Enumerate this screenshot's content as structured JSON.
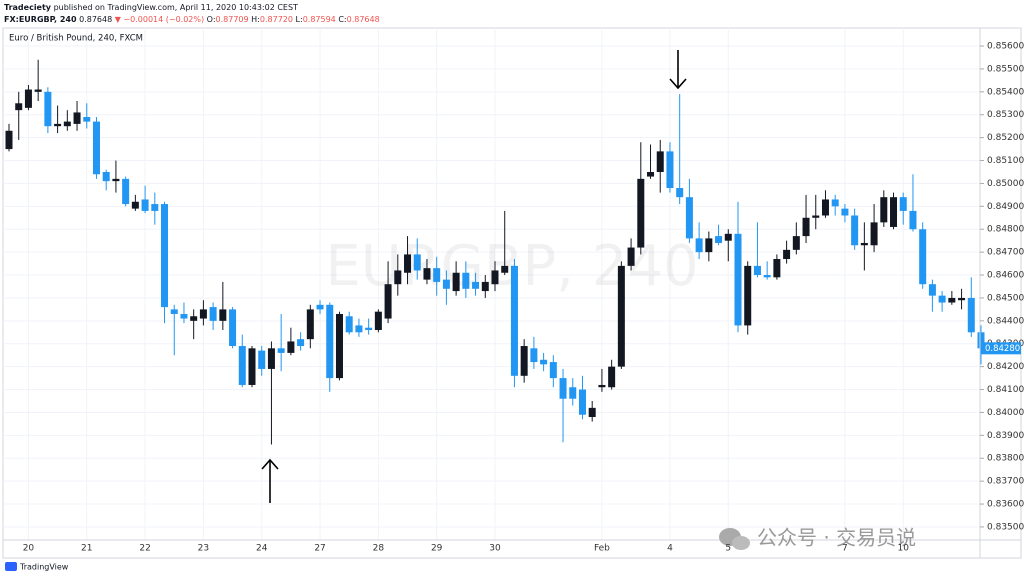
{
  "header": {
    "publisher": "Tradeciety",
    "published_line": "published on TradingView.com, April 11, 2020 10:43:02 CEST",
    "symbol": "FX:EURGBP, 240",
    "price": "0.87648",
    "change": "▼ −0.00014 (−0.02%)",
    "ohlc": [
      [
        "O:",
        "0.87709"
      ],
      [
        "H:",
        "0.87720"
      ],
      [
        "L:",
        "0.87594"
      ],
      [
        "C:",
        "0.87648"
      ]
    ]
  },
  "footer": {
    "brand": "TradingView"
  },
  "watermarks": {
    "center": "EURGBP, 240",
    "corner": "公众号 · 交易员说"
  },
  "chart_data": {
    "type": "candlestick",
    "title": "Euro / British Pound, 240, FXCM",
    "up_color": "#131722",
    "down_color": "#2196f3",
    "grid": true,
    "ylim": [
      0.83443,
      0.8567
    ],
    "yticks": [
      {
        "value": 0.835,
        "label": "0.83500"
      },
      {
        "value": 0.836,
        "label": "0.83600"
      },
      {
        "value": 0.837,
        "label": "0.83700"
      },
      {
        "value": 0.838,
        "label": "0.83800"
      },
      {
        "value": 0.839,
        "label": "0.83900"
      },
      {
        "value": 0.84,
        "label": "0.84000"
      },
      {
        "value": 0.841,
        "label": "0.84100"
      },
      {
        "value": 0.842,
        "label": "0.84200"
      },
      {
        "value": 0.843,
        "label": "0.84300"
      },
      {
        "value": 0.844,
        "label": "0.84400"
      },
      {
        "value": 0.845,
        "label": "0.84500"
      },
      {
        "value": 0.846,
        "label": "0.84600"
      },
      {
        "value": 0.847,
        "label": "0.84700"
      },
      {
        "value": 0.848,
        "label": "0.84800"
      },
      {
        "value": 0.849,
        "label": "0.84900"
      },
      {
        "value": 0.85,
        "label": "0.85000"
      },
      {
        "value": 0.851,
        "label": "0.85100"
      },
      {
        "value": 0.852,
        "label": "0.85200"
      },
      {
        "value": 0.853,
        "label": "0.85300"
      },
      {
        "value": 0.854,
        "label": "0.85400"
      },
      {
        "value": 0.855,
        "label": "0.85500"
      },
      {
        "value": 0.856,
        "label": "0.85600"
      }
    ],
    "last_price": 0.8428,
    "last_price_label": "0.84280",
    "categories": [
      null,
      null,
      "20",
      null,
      null,
      null,
      null,
      null,
      "21",
      null,
      null,
      null,
      null,
      null,
      "22",
      null,
      null,
      null,
      null,
      null,
      "23",
      null,
      null,
      null,
      null,
      null,
      "24",
      null,
      null,
      null,
      null,
      null,
      "27",
      null,
      null,
      null,
      null,
      null,
      "28",
      null,
      null,
      null,
      null,
      null,
      "29",
      null,
      null,
      null,
      null,
      null,
      "30",
      null,
      null,
      null,
      null,
      null,
      null,
      null,
      null,
      null,
      null,
      "Feb",
      null,
      null,
      null,
      null,
      null,
      null,
      "4",
      null,
      null,
      null,
      null,
      null,
      "5",
      null,
      null,
      null,
      null,
      null,
      null,
      null,
      null,
      null,
      null,
      null,
      "7",
      null,
      null,
      null,
      null,
      null,
      "10",
      null,
      null,
      null,
      null,
      null,
      null,
      null,
      null
    ],
    "open": [
      0.8515,
      0.8532,
      0.8533,
      0.854,
      0.854,
      0.8525,
      0.8525,
      0.8526,
      0.8529,
      0.8527,
      0.8505,
      0.8501,
      0.8502,
      0.8489,
      0.8493,
      0.8491,
      0.8491,
      0.8445,
      0.8443,
      0.844,
      0.8441,
      0.8446,
      0.844,
      0.8445,
      0.8429,
      0.8412,
      0.8427,
      0.8419,
      0.8428,
      0.8426,
      0.8432,
      0.8432,
      0.8447,
      0.8447,
      0.8415,
      0.8442,
      0.8438,
      0.8437,
      0.8436,
      0.8441,
      0.8456,
      0.8461,
      0.8469,
      0.8458,
      0.8463,
      0.8458,
      0.8453,
      0.8461,
      0.8457,
      0.8453,
      0.8456,
      0.8461,
      0.8464,
      0.8416,
      0.8428,
      0.8423,
      0.8422,
      0.8415,
      0.8411,
      0.841,
      0.8398,
      0.8411,
      0.8411,
      0.842,
      0.8464,
      0.8472,
      0.8503,
      0.8505,
      0.8514,
      0.8498,
      0.8494,
      0.8476,
      0.847,
      0.8477,
      0.8475,
      0.8478,
      0.8438,
      0.8464,
      0.846,
      0.8459,
      0.8467,
      0.8471,
      0.8477,
      0.8485,
      0.8486,
      0.8493,
      0.8489,
      0.8486,
      0.8473,
      0.8473,
      0.8483,
      0.8481,
      0.8494,
      0.8488,
      0.848,
      0.8456,
      0.8451,
      0.8448,
      0.8449,
      0.845,
      0.8435
    ],
    "high": [
      0.8526,
      0.854,
      0.8543,
      0.8554,
      0.8542,
      0.8534,
      0.8532,
      0.8536,
      0.8535,
      0.8529,
      0.8506,
      0.851,
      0.8503,
      0.8495,
      0.8499,
      0.8496,
      0.8492,
      0.8447,
      0.8448,
      0.8445,
      0.8449,
      0.8448,
      0.8457,
      0.8446,
      0.8434,
      0.8429,
      0.8429,
      0.8431,
      0.8443,
      0.8437,
      0.8435,
      0.8447,
      0.8449,
      0.8448,
      0.8444,
      0.8444,
      0.8441,
      0.8441,
      0.8445,
      0.8466,
      0.8469,
      0.8477,
      0.8476,
      0.8467,
      0.8468,
      0.8462,
      0.8466,
      0.8466,
      0.8461,
      0.846,
      0.8466,
      0.8488,
      0.8467,
      0.8432,
      0.8433,
      0.8426,
      0.8425,
      0.8419,
      0.8415,
      0.8416,
      0.8405,
      0.8419,
      0.8423,
      0.8466,
      0.8476,
      0.8518,
      0.8517,
      0.8519,
      0.8518,
      0.8539,
      0.8502,
      0.8483,
      0.8479,
      0.8482,
      0.848,
      0.8492,
      0.8466,
      0.8483,
      0.8466,
      0.8469,
      0.8475,
      0.8483,
      0.8495,
      0.8495,
      0.8497,
      0.8495,
      0.8491,
      0.8489,
      0.8483,
      0.8491,
      0.8497,
      0.8496,
      0.8496,
      0.8504,
      0.8483,
      0.8458,
      0.8453,
      0.8453,
      0.8454,
      0.8459,
      0.8438
    ],
    "low": [
      0.8514,
      0.8519,
      0.8532,
      0.8536,
      0.8522,
      0.8522,
      0.8523,
      0.8523,
      0.8524,
      0.8502,
      0.8497,
      0.8496,
      0.849,
      0.8488,
      0.8487,
      0.8482,
      0.8439,
      0.8425,
      0.8439,
      0.8432,
      0.8438,
      0.8436,
      0.8436,
      0.8428,
      0.8411,
      0.8411,
      0.8416,
      0.8386,
      0.8418,
      0.8425,
      0.8427,
      0.8428,
      0.8443,
      0.8409,
      0.8414,
      0.8434,
      0.8433,
      0.8434,
      0.8435,
      0.8439,
      0.8451,
      0.8456,
      0.8458,
      0.8456,
      0.8451,
      0.8447,
      0.8451,
      0.845,
      0.8451,
      0.845,
      0.8453,
      0.846,
      0.8411,
      0.8413,
      0.8419,
      0.8418,
      0.8411,
      0.8387,
      0.8403,
      0.8397,
      0.8396,
      0.8409,
      0.841,
      0.8419,
      0.8462,
      0.8469,
      0.8502,
      0.8496,
      0.8496,
      0.8491,
      0.8474,
      0.8467,
      0.8466,
      0.8473,
      0.8466,
      0.8435,
      0.8434,
      0.8459,
      0.8458,
      0.8458,
      0.8465,
      0.8469,
      0.8474,
      0.848,
      0.8485,
      0.8486,
      0.8483,
      0.8471,
      0.8462,
      0.847,
      0.8481,
      0.848,
      0.8482,
      0.8479,
      0.8454,
      0.8444,
      0.8444,
      0.8447,
      0.8445,
      0.8433,
      0.8421
    ],
    "close": [
      0.8523,
      0.8535,
      0.8541,
      0.8541,
      0.8525,
      0.8526,
      0.8527,
      0.8531,
      0.8527,
      0.8504,
      0.8501,
      0.8502,
      0.8491,
      0.8492,
      0.8488,
      0.8488,
      0.8446,
      0.8443,
      0.8441,
      0.8442,
      0.8445,
      0.844,
      0.8445,
      0.8429,
      0.8412,
      0.8428,
      0.8419,
      0.8428,
      0.8426,
      0.8431,
      0.8429,
      0.8445,
      0.8445,
      0.8415,
      0.8443,
      0.8435,
      0.8435,
      0.8436,
      0.8444,
      0.8456,
      0.8462,
      0.8469,
      0.8462,
      0.8463,
      0.8457,
      0.8454,
      0.8461,
      0.8454,
      0.8454,
      0.8457,
      0.8462,
      0.8464,
      0.8416,
      0.8429,
      0.8422,
      0.8421,
      0.8415,
      0.8406,
      0.8406,
      0.8399,
      0.8402,
      0.8412,
      0.842,
      0.8464,
      0.8472,
      0.8502,
      0.8505,
      0.8514,
      0.8498,
      0.8494,
      0.8476,
      0.847,
      0.8476,
      0.8474,
      0.8478,
      0.8438,
      0.8464,
      0.846,
      0.8459,
      0.8467,
      0.8471,
      0.8477,
      0.8485,
      0.8486,
      0.8493,
      0.849,
      0.8486,
      0.8473,
      0.8474,
      0.8483,
      0.8494,
      0.8494,
      0.8488,
      0.848,
      0.8456,
      0.8451,
      0.8448,
      0.845,
      0.845,
      0.8435,
      0.8428
    ]
  }
}
